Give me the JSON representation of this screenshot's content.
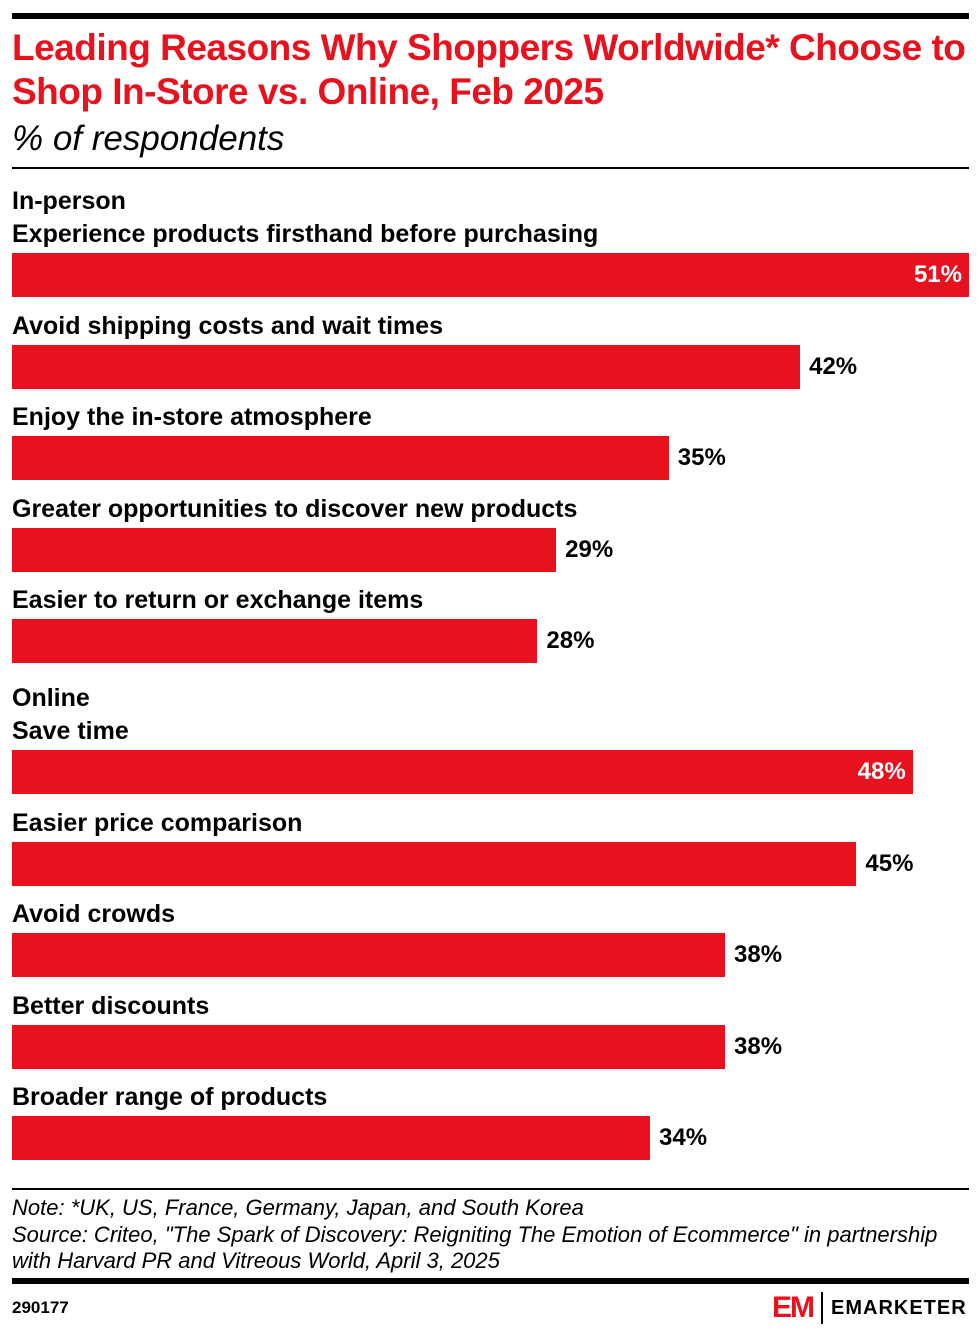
{
  "title": "Leading Reasons Why Shoppers Worldwide* Choose to Shop In-Store vs. Online, Feb 2025",
  "subtitle": "% of respondents",
  "chart_data": {
    "type": "bar",
    "orientation": "horizontal",
    "title": "Leading Reasons Why Shoppers Worldwide* Choose to Shop In-Store vs. Online, Feb 2025",
    "subtitle": "% of respondents",
    "bar_color": "#e8111e",
    "xlim": [
      0,
      51
    ],
    "grid": false,
    "groups": [
      {
        "name": "In-person",
        "categories": [
          "Experience products firsthand before purchasing",
          "Avoid shipping costs and wait times",
          "Enjoy the in-store atmosphere",
          "Greater opportunities to discover new products",
          "Easier to return or exchange items"
        ],
        "values": [
          51,
          42,
          35,
          29,
          28
        ],
        "labels": [
          "51%",
          "42%",
          "35%",
          "29%",
          "28%"
        ]
      },
      {
        "name": "Online",
        "categories": [
          "Save time",
          "Easier price comparison",
          "Avoid crowds",
          "Better discounts",
          "Broader range of products"
        ],
        "values": [
          48,
          45,
          38,
          38,
          34
        ],
        "labels": [
          "48%",
          "45%",
          "38%",
          "38%",
          "34%"
        ]
      }
    ]
  },
  "footer": {
    "note": "Note: *UK, US, France, Germany, Japan, and South Korea",
    "source": "Source: Criteo, \"The Spark of Discovery: Reigniting The Emotion of Ecommerce\" in partnership with Harvard PR and Vitreous World, April 3, 2025",
    "chart_id": "290177",
    "logo_mark": "EM",
    "logo_text": "EMARKETER"
  }
}
